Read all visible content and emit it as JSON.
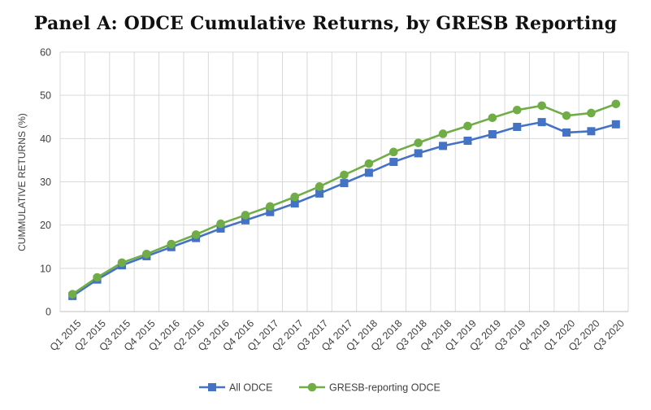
{
  "chart_data": {
    "type": "line",
    "title": "Panel A: ODCE Cumulative Returns, by GRESB Reporting",
    "xlabel": "",
    "ylabel": "CUMMULATIVE RETURNS (%)",
    "ylim": [
      0,
      60
    ],
    "yticks": [
      0,
      10,
      20,
      30,
      40,
      50,
      60
    ],
    "grid": true,
    "legend": "bottom",
    "categories": [
      "Q1 2015",
      "Q2 2015",
      "Q3 2015",
      "Q4 2015",
      "Q1 2016",
      "Q2 2016",
      "Q3 2016",
      "Q4 2016",
      "Q1 2017",
      "Q2 2017",
      "Q3 2017",
      "Q4 2017",
      "Q1 2018",
      "Q2 2018",
      "Q3 2018",
      "Q4 2018",
      "Q1 2019",
      "Q2 2019",
      "Q3 2019",
      "Q4 2019",
      "Q1 2020",
      "Q2 2020",
      "Q3 2020"
    ],
    "series": [
      {
        "name": "All ODCE",
        "color": "#4472C4",
        "marker": "square",
        "values": [
          3.6,
          7.4,
          10.7,
          12.8,
          14.9,
          17.0,
          19.2,
          21.1,
          23.0,
          25.0,
          27.3,
          29.7,
          32.1,
          34.6,
          36.6,
          38.3,
          39.5,
          41.0,
          42.7,
          43.8,
          41.4,
          41.7,
          43.3
        ]
      },
      {
        "name": "GRESB-reporting ODCE",
        "color": "#70AD47",
        "marker": "circle",
        "values": [
          4.0,
          7.9,
          11.3,
          13.3,
          15.6,
          17.8,
          20.3,
          22.3,
          24.3,
          26.5,
          28.9,
          31.6,
          34.2,
          36.9,
          39.0,
          41.1,
          42.9,
          44.8,
          46.6,
          47.6,
          45.3,
          45.9,
          48.0
        ]
      }
    ]
  }
}
